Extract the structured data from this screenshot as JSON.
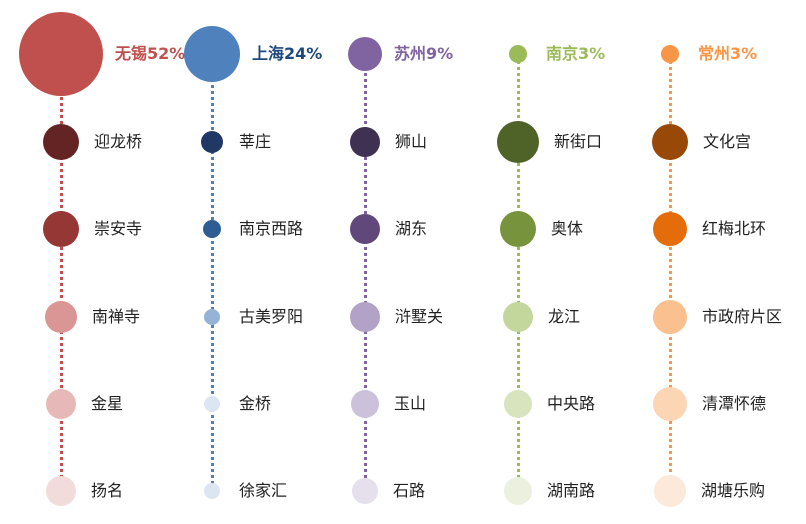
{
  "columns": [
    {
      "city": "无锡",
      "percent": "52%",
      "color": "#c0504d",
      "districts": [
        {
          "name": "迎龙桥",
          "color": "#632423"
        },
        {
          "name": "崇安寺",
          "color": "#953735"
        },
        {
          "name": "南禅寺",
          "color": "#da9694"
        },
        {
          "name": "金星",
          "color": "#e6b9b8"
        },
        {
          "name": "扬名",
          "color": "#f2dcdb"
        }
      ]
    },
    {
      "city": "上海",
      "percent": "24%",
      "color": "#4f81bd",
      "label_color": "#1f497d",
      "districts": [
        {
          "name": "莘庄",
          "color": "#1f3864"
        },
        {
          "name": "南京西路",
          "color": "#2e5d94"
        },
        {
          "name": "古美罗阳",
          "color": "#95b3d7"
        },
        {
          "name": "金桥",
          "color": "#dce6f2"
        },
        {
          "name": "徐家汇",
          "color": "#dce6f2"
        }
      ]
    },
    {
      "city": "苏州",
      "percent": "9%",
      "color": "#8064a2",
      "districts": [
        {
          "name": "狮山",
          "color": "#3f3151"
        },
        {
          "name": "湖东",
          "color": "#60497a"
        },
        {
          "name": "浒墅关",
          "color": "#b3a2c7"
        },
        {
          "name": "玉山",
          "color": "#ccc1da"
        },
        {
          "name": "石路",
          "color": "#e5e0ec"
        }
      ]
    },
    {
      "city": "南京",
      "percent": "3%",
      "color": "#9bbb59",
      "districts": [
        {
          "name": "新街口",
          "color": "#4f6228"
        },
        {
          "name": "奥体",
          "color": "#77933c"
        },
        {
          "name": "龙江",
          "color": "#c3d69b"
        },
        {
          "name": "中央路",
          "color": "#d7e4bd"
        },
        {
          "name": "湖南路",
          "color": "#ebf1de"
        }
      ]
    },
    {
      "city": "常州",
      "percent": "3%",
      "color": "#f79646",
      "districts": [
        {
          "name": "文化宫",
          "color": "#984807"
        },
        {
          "name": "红梅北环",
          "color": "#e46c0a"
        },
        {
          "name": "市政府片区",
          "color": "#fac090"
        },
        {
          "name": "清潭怀德",
          "color": "#fcd5b5"
        },
        {
          "name": "湖塘乐购",
          "color": "#fde9d9"
        }
      ]
    }
  ]
}
